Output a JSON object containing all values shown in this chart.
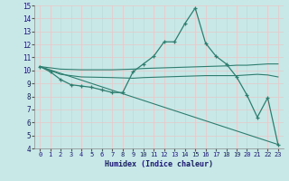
{
  "xlabel": "Humidex (Indice chaleur)",
  "bg_color": "#c8e8e8",
  "line_color": "#2e7d6e",
  "grid_color": "#e8c8c8",
  "xlim": [
    -0.5,
    23.5
  ],
  "ylim": [
    4,
    15
  ],
  "xticks": [
    0,
    1,
    2,
    3,
    4,
    5,
    6,
    7,
    8,
    9,
    10,
    11,
    12,
    13,
    14,
    15,
    16,
    17,
    18,
    19,
    20,
    21,
    22,
    23
  ],
  "yticks": [
    4,
    5,
    6,
    7,
    8,
    9,
    10,
    11,
    12,
    13,
    14,
    15
  ],
  "series1_x": [
    0,
    1,
    2,
    3,
    4,
    5,
    6,
    7,
    8,
    9,
    10,
    11,
    12,
    13,
    14,
    15,
    16,
    17,
    18,
    19,
    20,
    21,
    22,
    23
  ],
  "series1_y": [
    10.3,
    9.9,
    9.3,
    8.9,
    8.8,
    8.7,
    8.5,
    8.3,
    8.3,
    9.9,
    10.5,
    11.1,
    12.2,
    12.2,
    13.6,
    14.8,
    12.1,
    11.1,
    10.5,
    9.5,
    8.1,
    6.4,
    7.9,
    4.3
  ],
  "series2_x": [
    0,
    2,
    4,
    7,
    9,
    10,
    12,
    14,
    16,
    18,
    19,
    20,
    21,
    22,
    23
  ],
  "series2_y": [
    10.3,
    10.1,
    10.05,
    10.05,
    10.1,
    10.15,
    10.2,
    10.25,
    10.3,
    10.35,
    10.4,
    10.4,
    10.45,
    10.5,
    10.5
  ],
  "series3_x": [
    0,
    2,
    4,
    7,
    9,
    10,
    12,
    14,
    16,
    18,
    19,
    20,
    21,
    22,
    23
  ],
  "series3_y": [
    10.3,
    9.7,
    9.5,
    9.45,
    9.4,
    9.45,
    9.5,
    9.55,
    9.6,
    9.6,
    9.6,
    9.65,
    9.7,
    9.65,
    9.5
  ],
  "series4_x": [
    0,
    23
  ],
  "series4_y": [
    10.3,
    4.3
  ]
}
